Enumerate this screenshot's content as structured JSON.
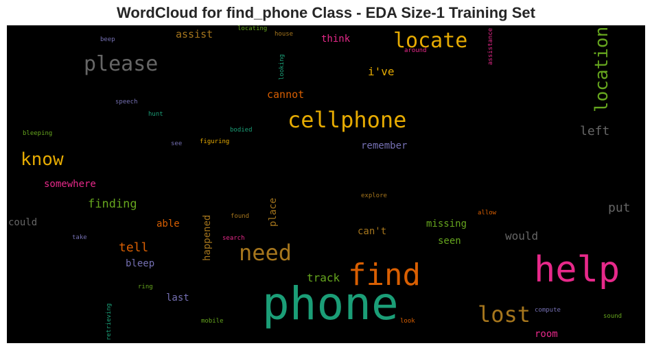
{
  "title": "WordCloud for find_phone Class - EDA Size-1 Training Set",
  "colors": {
    "background": "#000000",
    "teal": "#1b9e77",
    "orange": "#d95f02",
    "purple": "#7570b3",
    "pink": "#e7298a",
    "green": "#66a61e",
    "gold": "#e6ab02",
    "brown": "#a6761d",
    "gray": "#666666"
  },
  "words": [
    {
      "text": "phone",
      "color": "#1b9e77"
    },
    {
      "text": "help",
      "color": "#e7298a"
    },
    {
      "text": "find",
      "color": "#d95f02"
    },
    {
      "text": "cellphone",
      "color": "#e6ab02"
    },
    {
      "text": "locate",
      "color": "#e6ab02"
    },
    {
      "text": "please",
      "color": "#666666"
    },
    {
      "text": "location",
      "color": "#66a61e"
    },
    {
      "text": "lost",
      "color": "#a6761d"
    },
    {
      "text": "need",
      "color": "#a6761d"
    },
    {
      "text": "know",
      "color": "#e6ab02"
    },
    {
      "text": "i've",
      "color": "#e6ab02"
    },
    {
      "text": "left",
      "color": "#666666"
    },
    {
      "text": "cannot",
      "color": "#d95f02"
    },
    {
      "text": "remember",
      "color": "#7570b3"
    },
    {
      "text": "think",
      "color": "#e7298a"
    },
    {
      "text": "assist",
      "color": "#a6761d"
    },
    {
      "text": "somewhere",
      "color": "#e7298a"
    },
    {
      "text": "finding",
      "color": "#66a61e"
    },
    {
      "text": "put",
      "color": "#666666"
    },
    {
      "text": "could",
      "color": "#666666"
    },
    {
      "text": "able",
      "color": "#d95f02"
    },
    {
      "text": "happened",
      "color": "#a6761d"
    },
    {
      "text": "place",
      "color": "#a6761d"
    },
    {
      "text": "missing",
      "color": "#66a61e"
    },
    {
      "text": "can't",
      "color": "#a6761d"
    },
    {
      "text": "seen",
      "color": "#66a61e"
    },
    {
      "text": "would",
      "color": "#666666"
    },
    {
      "text": "tell",
      "color": "#d95f02"
    },
    {
      "text": "bleep",
      "color": "#7570b3"
    },
    {
      "text": "track",
      "color": "#66a61e"
    },
    {
      "text": "last",
      "color": "#7570b3"
    },
    {
      "text": "room",
      "color": "#e7298a"
    },
    {
      "text": "beep",
      "color": "#7570b3"
    },
    {
      "text": "locating",
      "color": "#66a61e"
    },
    {
      "text": "house",
      "color": "#a6761d"
    },
    {
      "text": "around",
      "color": "#e7298a"
    },
    {
      "text": "assistance",
      "color": "#e7298a"
    },
    {
      "text": "looking",
      "color": "#1b9e77"
    },
    {
      "text": "speech",
      "color": "#7570b3"
    },
    {
      "text": "hunt",
      "color": "#1b9e77"
    },
    {
      "text": "bleeping",
      "color": "#66a61e"
    },
    {
      "text": "bodied",
      "color": "#1b9e77"
    },
    {
      "text": "see",
      "color": "#7570b3"
    },
    {
      "text": "figuring",
      "color": "#e6ab02"
    },
    {
      "text": "explore",
      "color": "#a6761d"
    },
    {
      "text": "allow",
      "color": "#d95f02"
    },
    {
      "text": "found",
      "color": "#a6761d"
    },
    {
      "text": "search",
      "color": "#e7298a"
    },
    {
      "text": "take",
      "color": "#7570b3"
    },
    {
      "text": "ring",
      "color": "#66a61e"
    },
    {
      "text": "retrieving",
      "color": "#1b9e77"
    },
    {
      "text": "mobile",
      "color": "#66a61e"
    },
    {
      "text": "look",
      "color": "#d95f02"
    },
    {
      "text": "compute",
      "color": "#7570b3"
    },
    {
      "text": "sound",
      "color": "#66a61e"
    }
  ]
}
